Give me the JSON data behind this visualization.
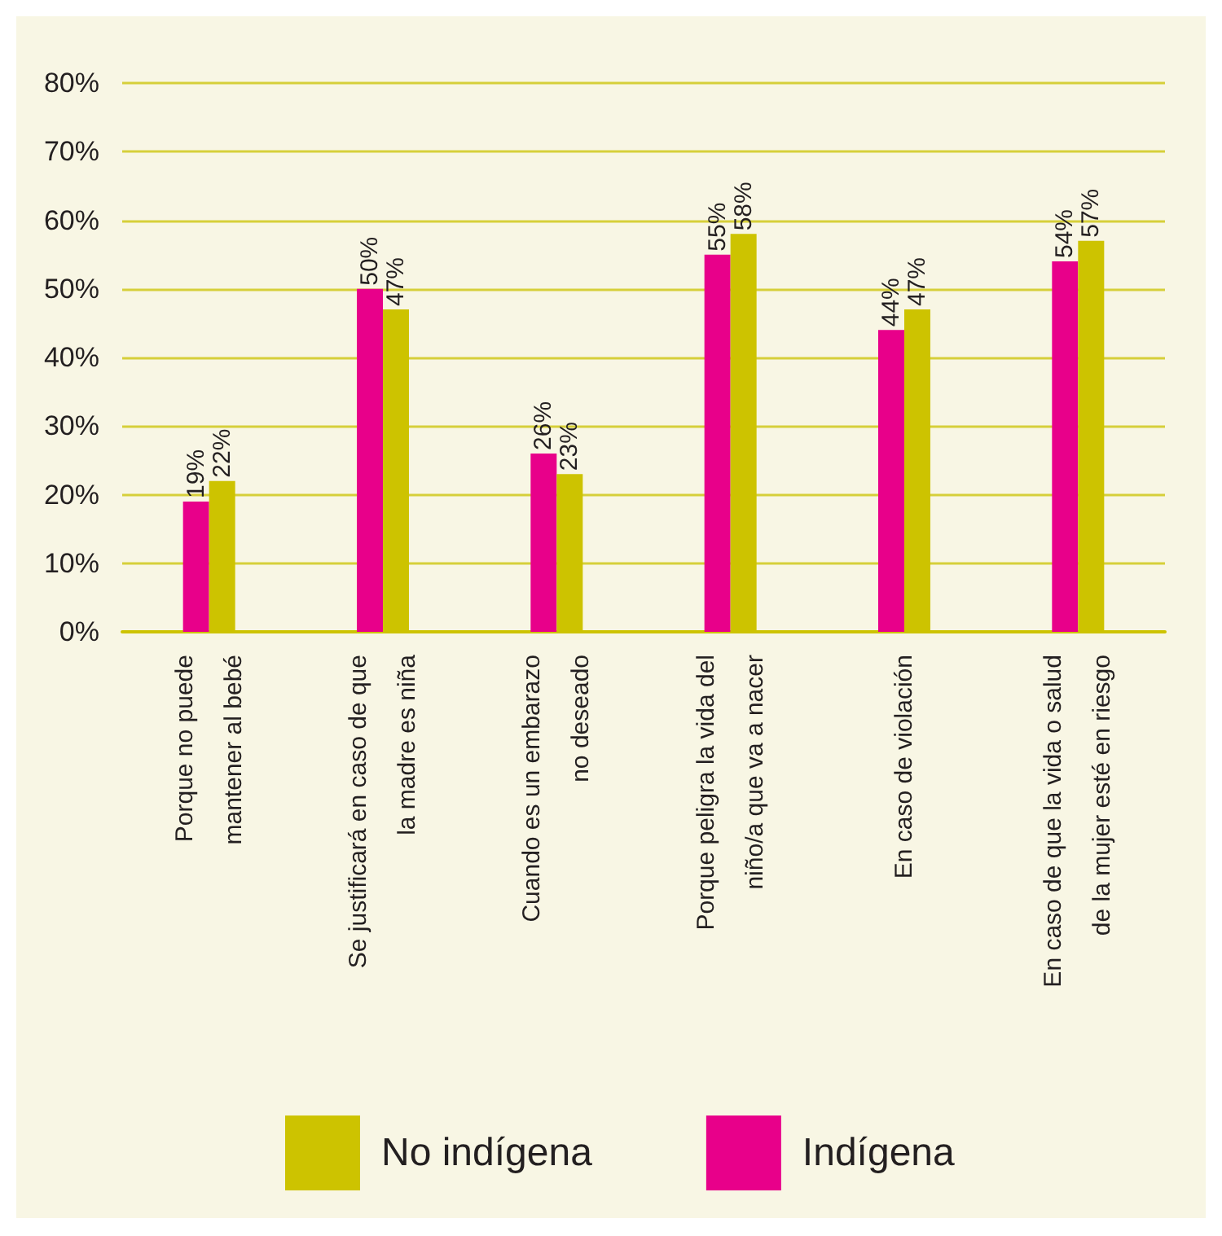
{
  "chart_data": {
    "type": "bar",
    "categories": [
      "Porque no puede\nmantener al bebé",
      "Se justificará en caso de que\nla madre es niña",
      "Cuando es un embarazo\nno deseado",
      "Porque peligra la vida del\nniño/a que va a nacer",
      "En caso de violación",
      "En caso de que la vida o salud\nde la mujer esté en riesgo"
    ],
    "series": [
      {
        "name": "Indígena",
        "color": "#e8008a",
        "values": [
          19,
          50,
          26,
          55,
          44,
          54
        ],
        "value_labels": [
          "19%",
          "50%",
          "26%",
          "55%",
          "44%",
          "54%"
        ]
      },
      {
        "name": "No indígena",
        "color": "#cdc300",
        "values": [
          22,
          47,
          23,
          58,
          47,
          57
        ],
        "value_labels": [
          "22%",
          "47%",
          "23%",
          "58%",
          "47%",
          "57%"
        ]
      }
    ],
    "ylim": [
      0,
      80
    ],
    "yticks": [
      {
        "value": 0,
        "label": "0%"
      },
      {
        "value": 10,
        "label": "10%"
      },
      {
        "value": 20,
        "label": "20%"
      },
      {
        "value": 30,
        "label": "30%"
      },
      {
        "value": 40,
        "label": "40%"
      },
      {
        "value": 50,
        "label": "50%"
      },
      {
        "value": 60,
        "label": "60%"
      },
      {
        "value": 70,
        "label": "70%"
      },
      {
        "value": 80,
        "label": "80%"
      }
    ],
    "grid": "y",
    "legend": "bottom"
  }
}
